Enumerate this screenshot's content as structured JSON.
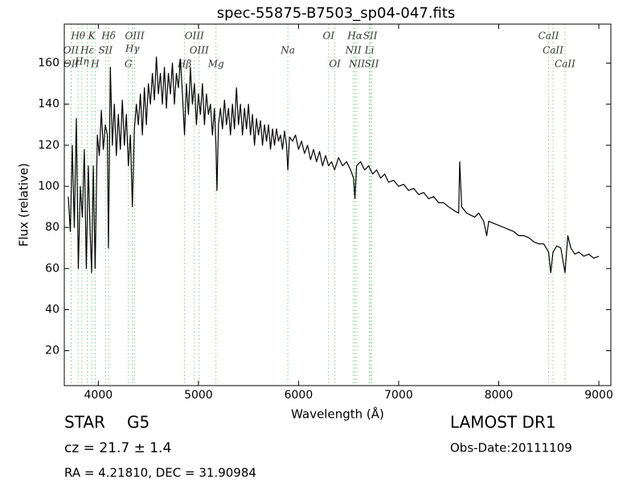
{
  "chart_data": {
    "type": "line",
    "title": "spec-55875-B7503_sp04-047.fits",
    "x_label": "Wavelength (Å)",
    "y_label": "Flux (relative)",
    "xlim": [
      3660,
      9120
    ],
    "ylim": [
      3,
      179
    ],
    "xticks": [
      4000,
      5000,
      6000,
      7000,
      8000,
      9000
    ],
    "yticks": [
      20,
      40,
      60,
      80,
      100,
      120,
      140,
      160
    ],
    "grid": false,
    "x": [
      3700,
      3720,
      3740,
      3760,
      3780,
      3800,
      3820,
      3840,
      3860,
      3880,
      3900,
      3920,
      3933,
      3950,
      3968,
      3990,
      4010,
      4030,
      4050,
      4070,
      4090,
      4101,
      4120,
      4140,
      4160,
      4180,
      4200,
      4220,
      4240,
      4260,
      4280,
      4300,
      4320,
      4340,
      4360,
      4380,
      4400,
      4420,
      4440,
      4460,
      4480,
      4500,
      4520,
      4540,
      4560,
      4580,
      4600,
      4620,
      4640,
      4660,
      4680,
      4700,
      4720,
      4740,
      4760,
      4780,
      4800,
      4820,
      4840,
      4861,
      4880,
      4900,
      4920,
      4940,
      4960,
      4980,
      5000,
      5020,
      5040,
      5060,
      5080,
      5100,
      5120,
      5140,
      5160,
      5175,
      5185,
      5200,
      5220,
      5240,
      5260,
      5280,
      5300,
      5320,
      5340,
      5360,
      5380,
      5400,
      5420,
      5440,
      5460,
      5480,
      5500,
      5520,
      5540,
      5560,
      5580,
      5600,
      5620,
      5640,
      5660,
      5680,
      5700,
      5720,
      5740,
      5760,
      5780,
      5800,
      5820,
      5840,
      5860,
      5880,
      5893,
      5910,
      5940,
      5970,
      6000,
      6030,
      6060,
      6090,
      6120,
      6150,
      6180,
      6210,
      6240,
      6270,
      6300,
      6330,
      6360,
      6400,
      6440,
      6480,
      6520,
      6550,
      6563,
      6580,
      6620,
      6660,
      6700,
      6740,
      6780,
      6820,
      6860,
      6900,
      6950,
      7000,
      7050,
      7100,
      7150,
      7200,
      7250,
      7300,
      7350,
      7400,
      7450,
      7500,
      7560,
      7600,
      7610,
      7630,
      7680,
      7720,
      7760,
      7800,
      7850,
      7880,
      7900,
      7950,
      8000,
      8050,
      8100,
      8150,
      8200,
      8250,
      8300,
      8350,
      8400,
      8450,
      8498,
      8520,
      8542,
      8580,
      8620,
      8662,
      8690,
      8720,
      8760,
      8800,
      8850,
      8900,
      8950,
      9000
    ],
    "series": [
      {
        "name": "flux",
        "color": "#000000",
        "values": [
          95,
          78,
          120,
          80,
          133,
          60,
          100,
          85,
          118,
          60,
          110,
          75,
          58,
          110,
          60,
          125,
          115,
          137,
          118,
          130,
          125,
          70,
          158,
          120,
          140,
          115,
          135,
          118,
          142,
          120,
          135,
          110,
          125,
          90,
          128,
          140,
          130,
          145,
          125,
          148,
          130,
          150,
          140,
          155,
          142,
          163,
          145,
          155,
          140,
          158,
          138,
          155,
          145,
          160,
          140,
          155,
          148,
          162,
          145,
          125,
          150,
          135,
          158,
          140,
          150,
          130,
          145,
          135,
          150,
          130,
          145,
          135,
          140,
          125,
          138,
          120,
          98,
          130,
          138,
          128,
          142,
          130,
          138,
          125,
          140,
          128,
          148,
          130,
          140,
          125,
          138,
          128,
          140,
          125,
          135,
          120,
          133,
          125,
          132,
          120,
          130,
          122,
          130,
          118,
          128,
          120,
          128,
          122,
          125,
          118,
          127,
          120,
          108,
          124,
          122,
          125,
          118,
          122,
          116,
          120,
          113,
          118,
          112,
          117,
          110,
          115,
          110,
          112,
          108,
          114,
          110,
          112,
          108,
          104,
          94,
          110,
          112,
          108,
          110,
          106,
          108,
          104,
          106,
          102,
          103,
          100,
          101,
          98,
          99,
          96,
          97,
          94,
          95,
          92,
          92,
          90,
          88,
          87,
          112,
          90,
          87,
          86,
          85,
          87,
          83,
          76,
          83,
          82,
          81,
          80,
          79,
          78,
          76,
          76,
          75,
          73,
          72,
          72,
          68,
          58,
          68,
          71,
          70,
          58,
          76,
          70,
          67,
          68,
          66,
          67,
          65,
          66
        ]
      }
    ],
    "line_marker_color": "#7fcf7f",
    "line_markers": [
      {
        "label": "OII",
        "wavelength": 3727
      },
      {
        "label": "OII",
        "wavelength": 3729
      },
      {
        "label": "Hθ",
        "wavelength": 3798
      },
      {
        "label": "Hη",
        "wavelength": 3835
      },
      {
        "label": "Hε",
        "wavelength": 3889
      },
      {
        "label": "SII",
        "wavelength": 4072
      },
      {
        "label": "K",
        "wavelength": 3934
      },
      {
        "label": "H",
        "wavelength": 3968
      },
      {
        "label": "Hδ",
        "wavelength": 4102
      },
      {
        "label": "G",
        "wavelength": 4300
      },
      {
        "label": "Hγ",
        "wavelength": 4340
      },
      {
        "label": "OIII",
        "wavelength": 4363
      },
      {
        "label": "Hβ",
        "wavelength": 4861
      },
      {
        "label": "OIII",
        "wavelength": 4959
      },
      {
        "label": "OIII",
        "wavelength": 5007
      },
      {
        "label": "Mg",
        "wavelength": 5175
      },
      {
        "label": "Na",
        "wavelength": 5893
      },
      {
        "label": "OI",
        "wavelength": 6300
      },
      {
        "label": "OI",
        "wavelength": 6363
      },
      {
        "label": "NII",
        "wavelength": 6548
      },
      {
        "label": "Hα",
        "wavelength": 6563
      },
      {
        "label": "NII",
        "wavelength": 6583
      },
      {
        "label": "Li",
        "wavelength": 6708
      },
      {
        "label": "SII",
        "wavelength": 6716
      },
      {
        "label": "SII",
        "wavelength": 6731
      },
      {
        "label": "CaII",
        "wavelength": 8498
      },
      {
        "label": "CaII",
        "wavelength": 8542
      },
      {
        "label": "CaII",
        "wavelength": 8662
      }
    ]
  },
  "info": {
    "object_class": "STAR",
    "subclass": "G5",
    "redshift": "cz = 21.7 ± 1.4",
    "coordinates": "RA = 4.21810, DEC = 31.90984",
    "survey": "LAMOST DR1",
    "obs_date": "Obs-Date:20111109"
  }
}
